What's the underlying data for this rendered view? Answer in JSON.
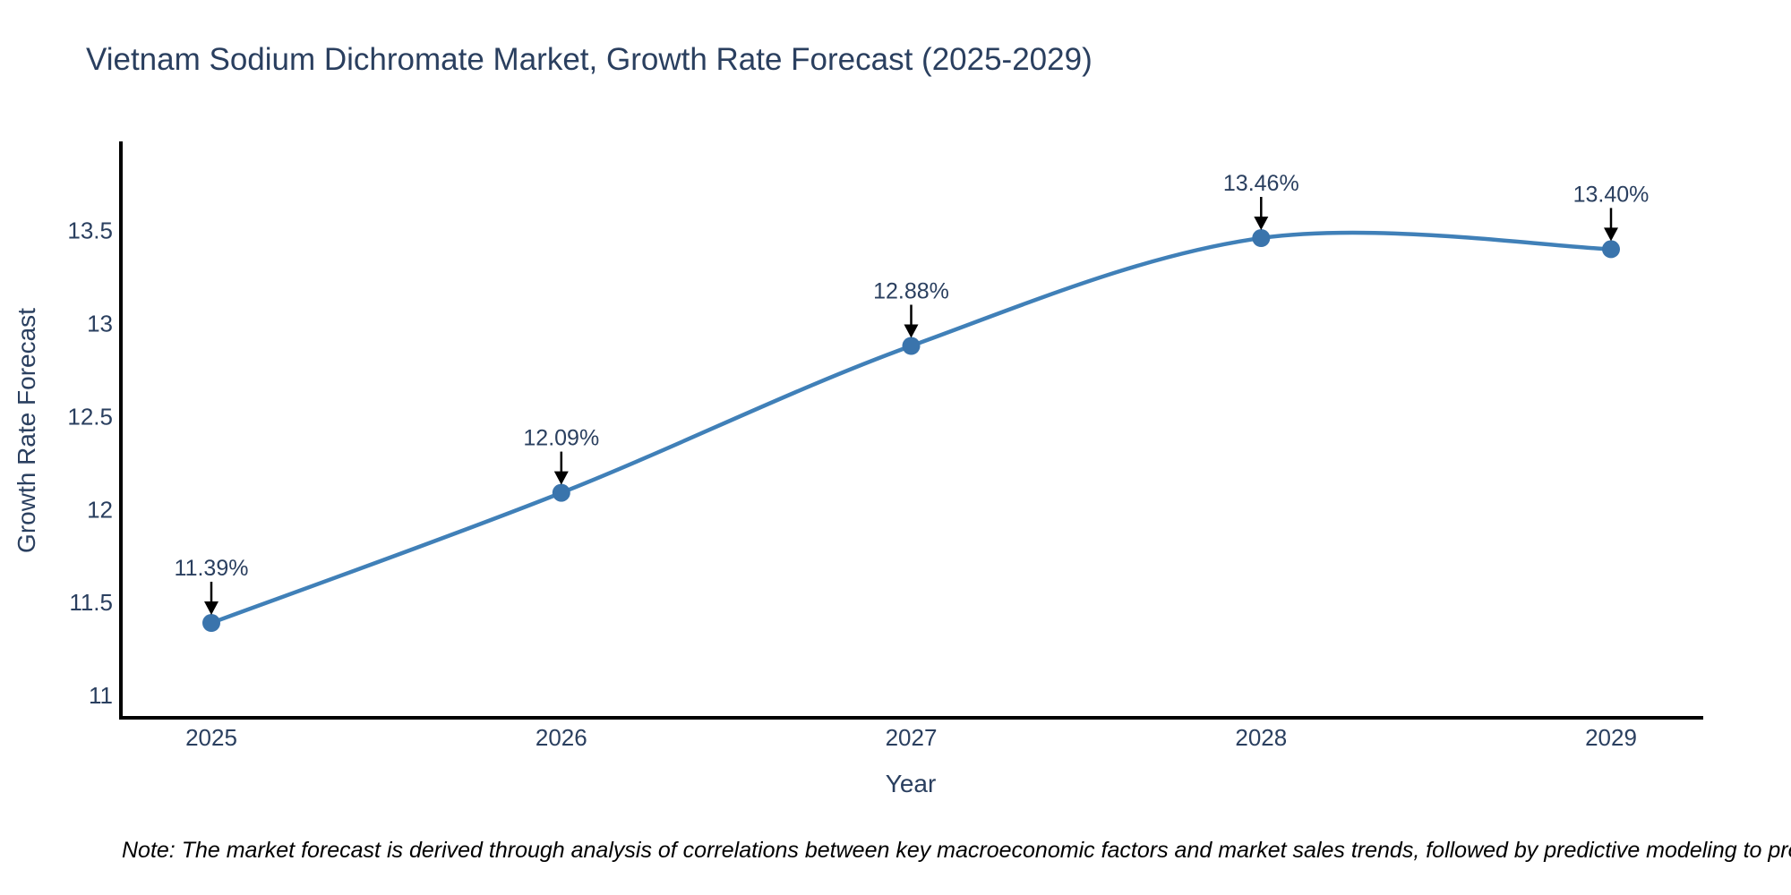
{
  "page": {
    "title": "Vietnam Sodium Dichromate Market, Growth Rate Forecast (2025-2029)",
    "note": "Note: The market forecast is derived through analysis of correlations between key macroeconomic factors and market sales trends, followed by predictive modeling to project future sales"
  },
  "colors": {
    "line": "#4080b8",
    "marker": "#3a74ac",
    "chart_text": "#2a3f5f",
    "axis": "#000000",
    "arrow": "#000000",
    "note_text": "#000000",
    "background": "#ffffff"
  },
  "chart_data": {
    "type": "line",
    "title": "Vietnam Sodium Dichromate Market, Growth Rate Forecast (2025-2029)",
    "categories": [
      "2025",
      "2026",
      "2027",
      "2028",
      "2029"
    ],
    "series": [
      {
        "name": "Growth Rate Forecast",
        "values": [
          11.39,
          12.09,
          12.88,
          13.46,
          13.4
        ]
      }
    ],
    "point_labels": [
      "11.39%",
      "12.09%",
      "12.88%",
      "13.46%",
      "13.40%"
    ],
    "xlabel": "Year",
    "ylabel": "Growth Rate Forecast",
    "yticks": [
      11,
      11.5,
      12,
      12.5,
      13,
      13.5
    ],
    "ylim": [
      10.88,
      13.97
    ],
    "line_shape": "spline",
    "grid": false,
    "legend_position": "none",
    "markers": true,
    "annotations": "value labels with black down arrows above each data point"
  }
}
